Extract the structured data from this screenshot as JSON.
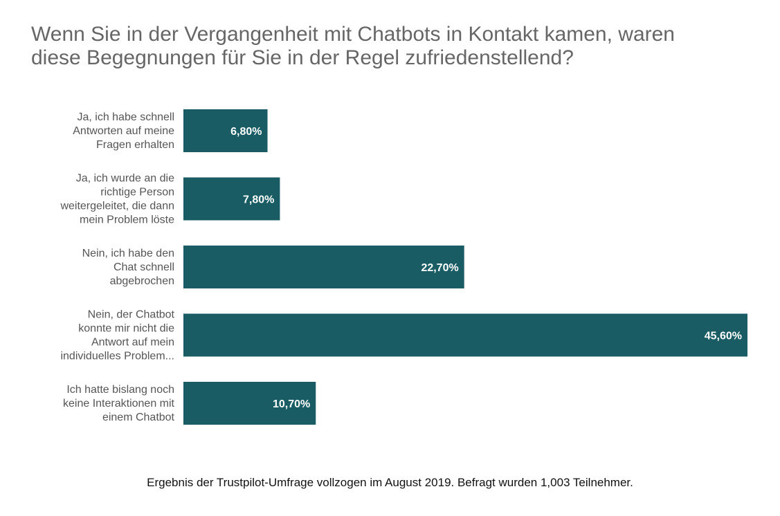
{
  "title_lines": [
    "Wenn Sie in der Vergangenheit mit Chatbots in Kontakt kamen, waren",
    "diese Begegnungen für Sie in der Regel zufriedenstellend?"
  ],
  "footnote": "Ergebnis der Trustpilot-Umfrage vollzogen im August 2019. Befragt wurden 1,003 Teilnehmer.",
  "chart_data": {
    "type": "bar",
    "orientation": "horizontal",
    "title": "Wenn Sie in der Vergangenheit mit Chatbots in Kontakt kamen, waren diese Begegnungen für Sie in der Regel zufriedenstellend?",
    "categories": [
      [
        "Ja, ich habe schnell",
        "Antworten auf meine",
        "Fragen erhalten"
      ],
      [
        "Ja, ich wurde an die",
        "richtige Person",
        "weitergeleitet, die dann",
        "mein Problem löste"
      ],
      [
        "Nein, ich habe den",
        "Chat schnell",
        "abgebrochen"
      ],
      [
        "Nein, der Chatbot",
        "konnte mir nicht die",
        "Antwort auf mein",
        "individuelles Problem..."
      ],
      [
        "Ich hatte bislang noch",
        "keine Interaktionen mit",
        "einem Chatbot"
      ]
    ],
    "values": [
      6.8,
      7.8,
      22.7,
      45.6,
      10.7
    ],
    "value_labels": [
      "6,80%",
      "7,80%",
      "22,70%",
      "45,60%",
      "10,70%"
    ],
    "bar_color": "#1a5c63",
    "xlim": [
      0,
      45.6
    ],
    "grid": false,
    "legend": "none"
  }
}
